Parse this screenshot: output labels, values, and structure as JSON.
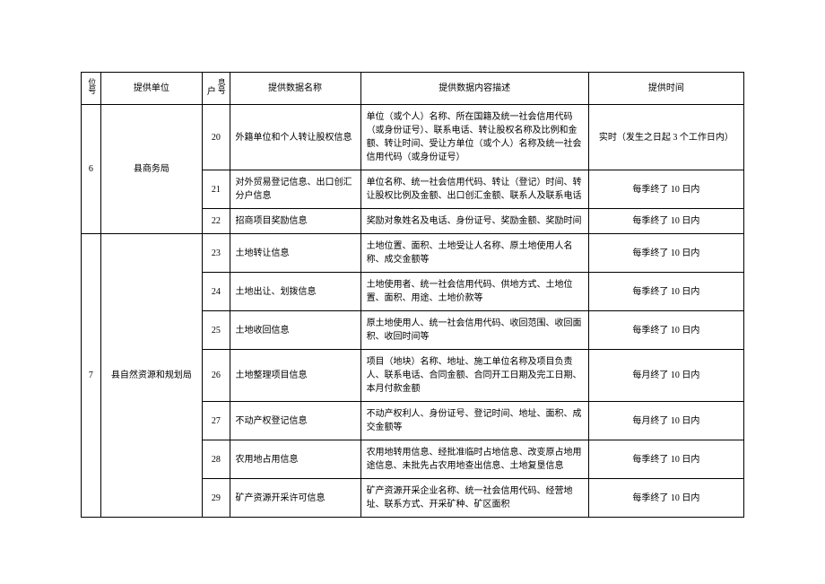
{
  "headers": {
    "unitno": "位号",
    "unit": "提供单位",
    "infono_p": "户",
    "infono_s": "息号",
    "dataname": "提供数据名称",
    "desc": "提供数据内容描述",
    "time": "提供时间"
  },
  "groups": [
    {
      "unitno": "6",
      "unit": "县商务局",
      "rows": [
        {
          "infono": "20",
          "dataname": "外籍单位和个人转让股权信息",
          "desc": "单位（或个人）名称、所在国籍及统一社会信用代码（或身份证号）、联系电话、转让股权名称及比例和金额、转让时间、受让方单位（或个人）名称及统一社会信用代码（或身份证号）",
          "time": "实时（发生之日起 3 个工作日内）"
        },
        {
          "infono": "21",
          "dataname": "对外贸易登记信息、出口创汇分户信息",
          "desc": "单位名称、统一社会信用代码、转让（登记）时间、转让股权比例及金额、出口创汇金额、联系人及联系电话",
          "time": "每季终了 10 日内"
        },
        {
          "infono": "22",
          "dataname": "招商项目奖励信息",
          "desc": "奖励对象姓名及电话、身份证号、奖励金额、奖励时间",
          "time": "每季终了 10 日内"
        }
      ]
    },
    {
      "unitno": "7",
      "unit": "县自然资源和规划局",
      "rows": [
        {
          "infono": "23",
          "dataname": "土地转让信息",
          "desc": "土地位置、面积、土地受让人名称、原土地使用人名称、成交金额等",
          "time": "每季终了 10 日内"
        },
        {
          "infono": "24",
          "dataname": "土地出让、划拨信息",
          "desc": "土地使用者、统一社会信用代码、供地方式、土地位置、面积、用途、土地价款等",
          "time": "每季终了 10 日内"
        },
        {
          "infono": "25",
          "dataname": "土地收回信息",
          "desc": "原土地使用人、统一社会信用代码、收回范围、收回面积、收回时间等",
          "time": "每季终了 10 日内"
        },
        {
          "infono": "26",
          "dataname": "土地整理项目信息",
          "desc": "项目（地块）名称、地址、施工单位名称及项目负责人、联系电话、合同金额、合同开工日期及完工日期、本月付款金额",
          "time": "每月终了 10 日内"
        },
        {
          "infono": "27",
          "dataname": "不动产权登记信息",
          "desc": "不动产权利人、身份证号、登记时间、地址、面积、成交金额等",
          "time": "每月终了 10 日内"
        },
        {
          "infono": "28",
          "dataname": "农用地占用信息",
          "desc": "农用地转用信息、经批准临时占地信息、改变原占地用途信息、未批先占农用地查出信息、土地复垦信息",
          "time": "每季终了 10 日内"
        },
        {
          "infono": "29",
          "dataname": "矿产资源开采许可信息",
          "desc": "矿产资源开采企业名称、统一社会信用代码、经营地址、联系方式、开采矿种、矿区面积",
          "time": "每季终了 10 日内"
        }
      ]
    }
  ]
}
